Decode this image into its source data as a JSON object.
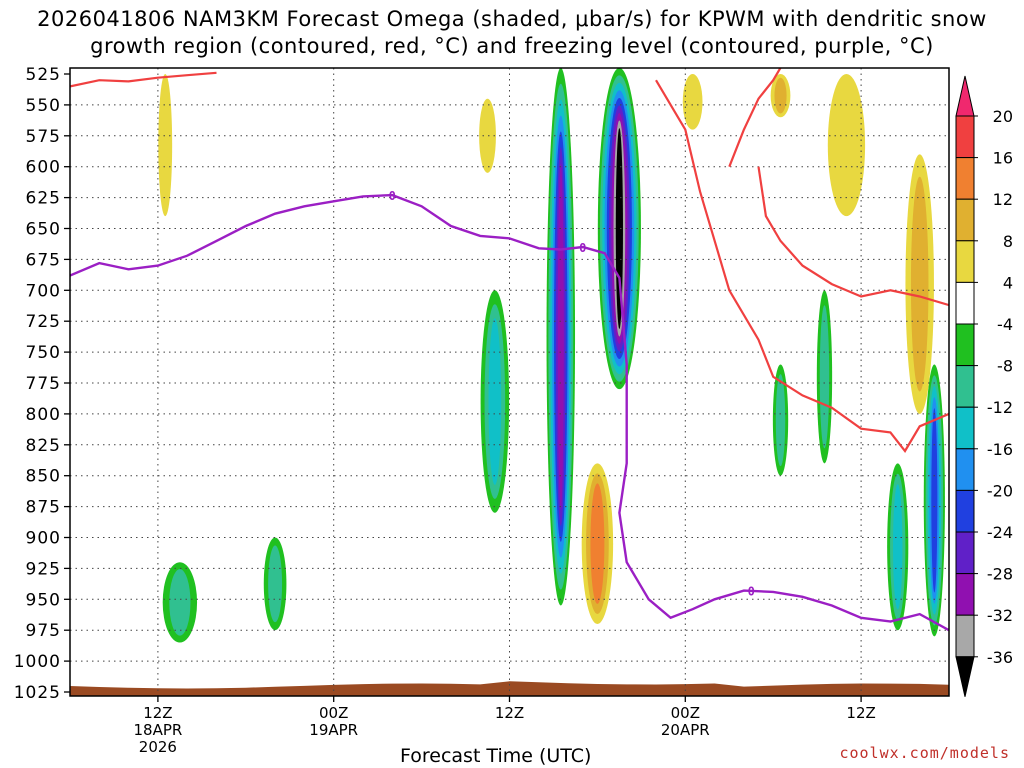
{
  "header": {
    "title_line1": "2026041806 NAM3KM Forecast Omega (shaded, μbar/s) for KPWM with dendritic snow",
    "title_line2": "growth region (contoured, red, °C) and freezing level (contoured, purple, °C)"
  },
  "footer": {
    "credit": "coolwx.com/models",
    "xlabel": "Forecast Time (UTC)"
  },
  "chart_data": {
    "type": "heatmap",
    "title": "2026041806 NAM3KM Forecast Omega (shaded, μbar/s) for KPWM with dendritic snow growth region (contoured, red, °C) and freezing level (contoured, purple, °C)",
    "xlabel": "Forecast Time (UTC)",
    "ylabel": "",
    "x_range_hours": [
      0,
      60
    ],
    "x_ticks": [
      {
        "hour": 6,
        "label": [
          "12Z",
          "18APR",
          "2026"
        ]
      },
      {
        "hour": 18,
        "label": [
          "00Z",
          "19APR"
        ]
      },
      {
        "hour": 30,
        "label": [
          "12Z"
        ]
      },
      {
        "hour": 42,
        "label": [
          "00Z",
          "20APR"
        ]
      },
      {
        "hour": 54,
        "label": [
          "12Z"
        ]
      }
    ],
    "y_ticks": [
      525,
      550,
      575,
      600,
      625,
      650,
      675,
      700,
      725,
      750,
      775,
      800,
      825,
      850,
      875,
      900,
      925,
      950,
      975,
      1000,
      1025
    ],
    "y_range_hPa": [
      525,
      1025
    ],
    "grid": true,
    "colorbar": {
      "labels": [
        "20",
        "16",
        "12",
        "8",
        "4",
        "-4",
        "-8",
        "-12",
        "-16",
        "-20",
        "-24",
        "-28",
        "-32",
        "-36"
      ],
      "levels": [
        20,
        16,
        12,
        8,
        4,
        -4,
        -8,
        -12,
        -16,
        -20,
        -24,
        -28,
        -32,
        -36
      ],
      "colors": [
        "#f0286e",
        "#f04040",
        "#f08030",
        "#e0b030",
        "#e8d840",
        "#ffffff",
        "#20c020",
        "#30c090",
        "#10c0c8",
        "#2090f0",
        "#2040e0",
        "#6020c8",
        "#9010b0",
        "#a8a8a8",
        "#000000"
      ]
    },
    "contour_labels": {
      "freezing_level": "0"
    },
    "freezing_level_hPa": [
      [
        0,
        688
      ],
      [
        2,
        678
      ],
      [
        4,
        683
      ],
      [
        6,
        680
      ],
      [
        8,
        672
      ],
      [
        10,
        660
      ],
      [
        12,
        648
      ],
      [
        14,
        638
      ],
      [
        16,
        632
      ],
      [
        18,
        628
      ],
      [
        20,
        624
      ],
      [
        22,
        623
      ],
      [
        24,
        632
      ],
      [
        26,
        648
      ],
      [
        28,
        656
      ],
      [
        30,
        658
      ],
      [
        32,
        666
      ],
      [
        33.5,
        667
      ],
      [
        35,
        665
      ],
      [
        36.5,
        670
      ],
      [
        37.5,
        690
      ],
      [
        38,
        760
      ],
      [
        38,
        840
      ],
      [
        37.5,
        880
      ],
      [
        38,
        920
      ],
      [
        39.5,
        950
      ],
      [
        41,
        965
      ],
      [
        42.5,
        958
      ],
      [
        44,
        950
      ],
      [
        46,
        943
      ],
      [
        48,
        944
      ],
      [
        50,
        948
      ],
      [
        52,
        955
      ],
      [
        54,
        965
      ],
      [
        56,
        968
      ],
      [
        58,
        962
      ],
      [
        60,
        975
      ]
    ],
    "dgz_upper_hPa": [
      [
        0,
        535
      ],
      [
        2,
        530
      ],
      [
        4,
        531
      ],
      [
        6,
        528
      ],
      [
        8,
        526
      ],
      [
        10,
        524
      ]
    ],
    "dgz_lower_hPa": [
      [
        40,
        530
      ],
      [
        42,
        570
      ],
      [
        43,
        620
      ],
      [
        45,
        700
      ],
      [
        47,
        740
      ],
      [
        48,
        770
      ],
      [
        50,
        785
      ],
      [
        52,
        795
      ],
      [
        54,
        812
      ],
      [
        56,
        815
      ],
      [
        57,
        830
      ],
      [
        58,
        810
      ],
      [
        60,
        800
      ]
    ],
    "dgz_upper2_hPa": [
      [
        45,
        600
      ],
      [
        46,
        570
      ],
      [
        47,
        545
      ],
      [
        48,
        530
      ],
      [
        48.5,
        520
      ]
    ],
    "dgz_right_hPa": [
      [
        47,
        600
      ],
      [
        47.5,
        640
      ],
      [
        48.5,
        660
      ],
      [
        50,
        680
      ],
      [
        52,
        695
      ],
      [
        54,
        705
      ],
      [
        56,
        700
      ],
      [
        58,
        705
      ],
      [
        60,
        712
      ]
    ],
    "omega_features": [
      {
        "hour": 33.5,
        "p_top": 520,
        "p_bottom": 955,
        "peak": -28,
        "width_h": 1.4
      },
      {
        "hour": 37.5,
        "p_top": 520,
        "p_bottom": 780,
        "peak": -36,
        "width_h": 2.4
      },
      {
        "hour": 36.0,
        "p_top": 840,
        "p_bottom": 970,
        "peak": 12,
        "width_h": 1.6
      },
      {
        "hour": 29.0,
        "p_top": 700,
        "p_bottom": 880,
        "peak": -12,
        "width_h": 1.4
      },
      {
        "hour": 59.0,
        "p_top": 760,
        "p_bottom": 980,
        "peak": -20,
        "width_h": 0.9
      },
      {
        "hour": 56.5,
        "p_top": 840,
        "p_bottom": 975,
        "peak": -12,
        "width_h": 0.9
      },
      {
        "hour": 58.0,
        "p_top": 590,
        "p_bottom": 800,
        "peak": 8,
        "width_h": 1.4
      },
      {
        "hour": 7.5,
        "p_top": 920,
        "p_bottom": 985,
        "peak": -8,
        "width_h": 1.8
      },
      {
        "hour": 14.0,
        "p_top": 900,
        "p_bottom": 975,
        "peak": -8,
        "width_h": 1.0
      },
      {
        "hour": 51.5,
        "p_top": 700,
        "p_bottom": 840,
        "peak": -8,
        "width_h": 0.5
      },
      {
        "hour": 48.5,
        "p_top": 760,
        "p_bottom": 850,
        "peak": -8,
        "width_h": 0.5
      },
      {
        "hour": 6.5,
        "p_top": 525,
        "p_bottom": 640,
        "peak": 4,
        "width_h": 0.4
      },
      {
        "hour": 28.5,
        "p_top": 545,
        "p_bottom": 605,
        "peak": 4,
        "width_h": 0.6
      },
      {
        "hour": 42.5,
        "p_top": 525,
        "p_bottom": 570,
        "peak": 4,
        "width_h": 0.8
      },
      {
        "hour": 48.5,
        "p_top": 525,
        "p_bottom": 560,
        "peak": 8,
        "width_h": 0.8
      },
      {
        "hour": 53.0,
        "p_top": 525,
        "p_bottom": 640,
        "peak": 4,
        "width_h": 2.0
      }
    ]
  }
}
